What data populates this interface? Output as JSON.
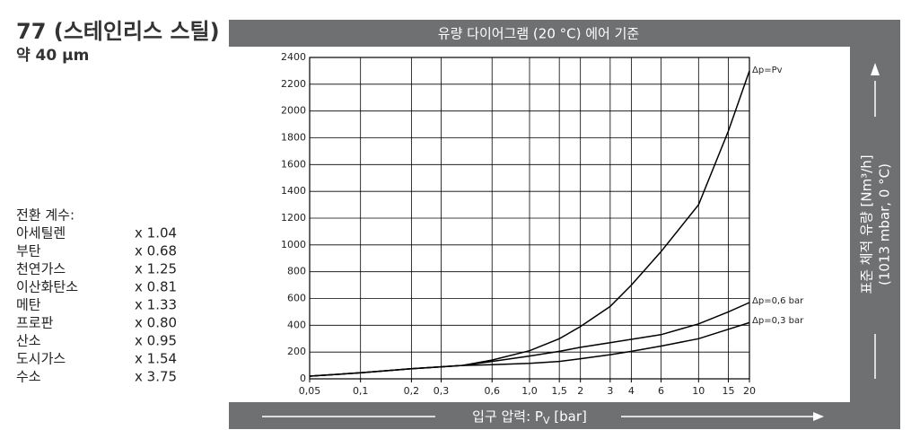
{
  "header": {
    "title": "77 (스테인리스 스틸)",
    "subtitle": "약 40 µm"
  },
  "conversion": {
    "title": "전환 계수:",
    "rows": [
      [
        "아세틸렌",
        "x 1.04"
      ],
      [
        "부탄",
        "x 0.68"
      ],
      [
        "천연가스",
        "x 1.25"
      ],
      [
        "이산화탄소",
        "x 0.81"
      ],
      [
        "메탄",
        "x 1.33"
      ],
      [
        "프로판",
        "x 0.80"
      ],
      [
        "산소",
        "x 0.95"
      ],
      [
        "도시가스",
        "x 1.54"
      ],
      [
        "수소",
        "x 3.75"
      ]
    ]
  },
  "chart_data": {
    "type": "line",
    "title": "유량 다이어그램 (20 °C) 에어 기준",
    "xlabel": [
      "입구 압력: P",
      "V",
      " [bar]"
    ],
    "ylabel": [
      "표준 체적 유량 [Nm³/h]",
      "(1013 mbar, 0 °C)"
    ],
    "x": [
      0.05,
      0.1,
      0.2,
      0.3,
      0.4,
      0.6,
      1,
      1.5,
      2,
      3,
      4,
      6,
      10,
      15,
      20
    ],
    "series": [
      {
        "name": "Δp=Pv",
        "color": "#000000",
        "values": [
          20,
          45,
          75,
          90,
          100,
          140,
          210,
          300,
          390,
          540,
          700,
          950,
          1300,
          1850,
          2300
        ]
      },
      {
        "name": "Δp=0,6 bar",
        "color": "#000000",
        "values": [
          20,
          45,
          75,
          90,
          100,
          130,
          170,
          205,
          235,
          270,
          295,
          330,
          410,
          500,
          570
        ]
      },
      {
        "name": "Δp=0,3 bar",
        "color": "#000000",
        "values": [
          20,
          45,
          75,
          90,
          100,
          105,
          115,
          130,
          150,
          180,
          205,
          245,
          300,
          370,
          420
        ]
      }
    ],
    "xscale": "log",
    "xlim": [
      0.05,
      20
    ],
    "ylim": [
      0,
      2400
    ],
    "xticks": [
      {
        "value": 0.05,
        "label": "0,05"
      },
      {
        "value": 0.1,
        "label": "0,1"
      },
      {
        "value": 0.2,
        "label": "0,2"
      },
      {
        "value": 0.3,
        "label": "0,3"
      },
      {
        "value": 0.6,
        "label": "0,6"
      },
      {
        "value": 1,
        "label": "1,0"
      },
      {
        "value": 1.5,
        "label": "1,5"
      },
      2,
      3,
      4,
      6,
      10,
      15,
      20
    ],
    "yticks": [
      0,
      200,
      400,
      600,
      800,
      1000,
      1200,
      1400,
      1600,
      1800,
      2000,
      2200,
      2400
    ],
    "grid": true
  }
}
